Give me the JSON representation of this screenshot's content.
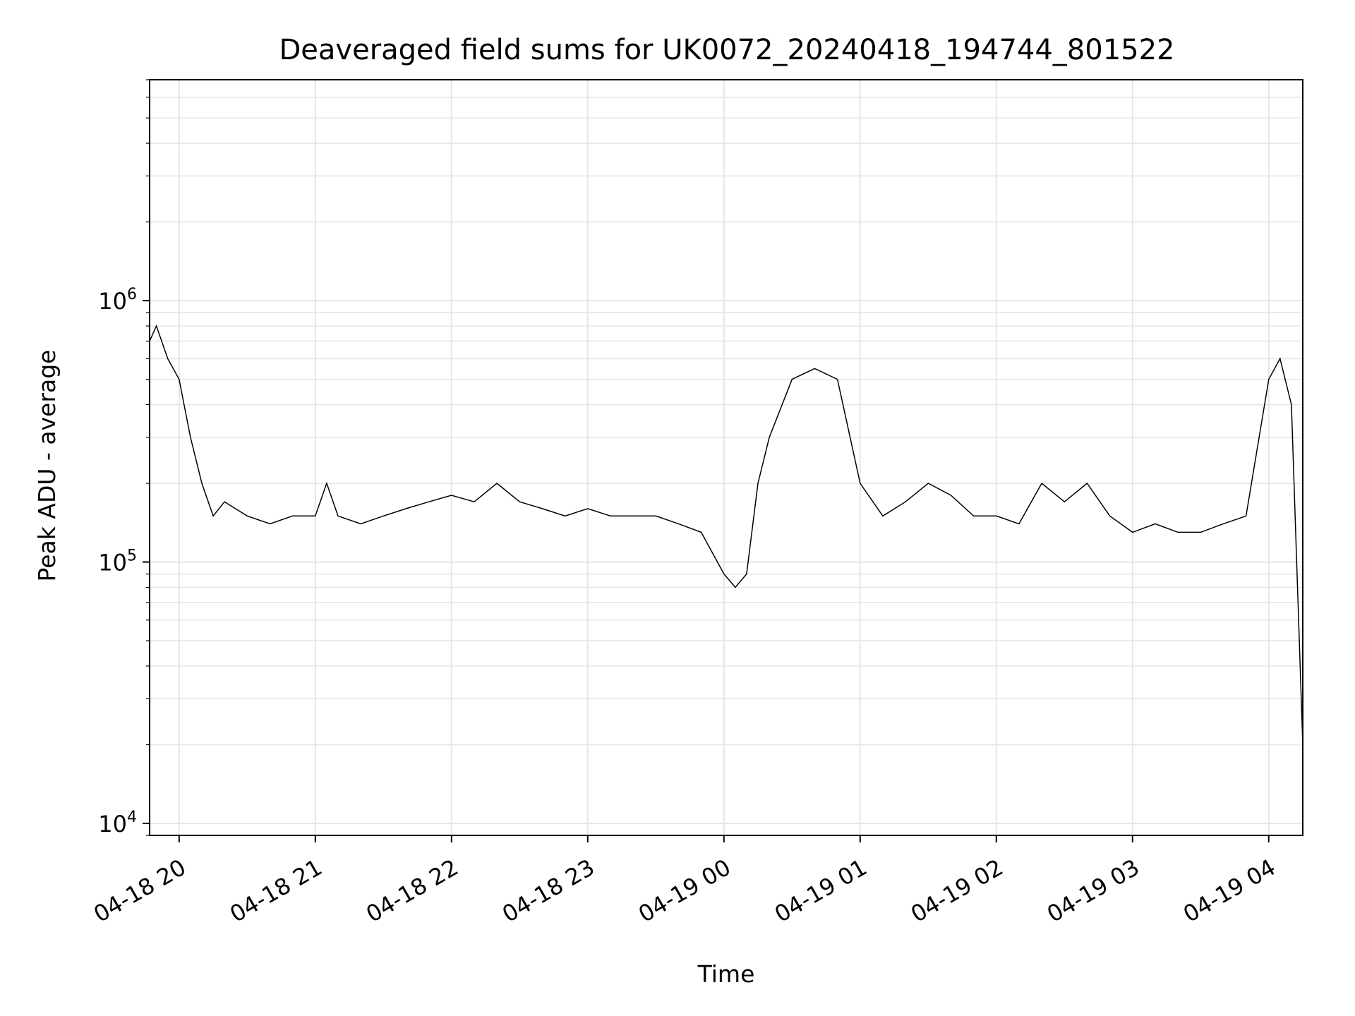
{
  "chart_data": {
    "type": "line",
    "title": "Deaveraged field sums for UK0072_20240418_194744_801522",
    "xlabel": "Time",
    "ylabel": "Peak ADU - average",
    "yscale": "log",
    "xlim": [
      "2024-04-18 19:47",
      "2024-04-19 04:15"
    ],
    "ylim": [
      9000,
      7000000
    ],
    "xticks": [
      {
        "value": "2024-04-18 20:00",
        "label": "04-18 20"
      },
      {
        "value": "2024-04-18 21:00",
        "label": "04-18 21"
      },
      {
        "value": "2024-04-18 22:00",
        "label": "04-18 22"
      },
      {
        "value": "2024-04-18 23:00",
        "label": "04-18 23"
      },
      {
        "value": "2024-04-19 00:00",
        "label": "04-19 00"
      },
      {
        "value": "2024-04-19 01:00",
        "label": "04-19 01"
      },
      {
        "value": "2024-04-19 02:00",
        "label": "04-19 02"
      },
      {
        "value": "2024-04-19 03:00",
        "label": "04-19 03"
      },
      {
        "value": "2024-04-19 04:00",
        "label": "04-19 04"
      }
    ],
    "yticks": [
      {
        "value": 10000,
        "base": "10",
        "exp": "4"
      },
      {
        "value": 100000,
        "base": "10",
        "exp": "5"
      },
      {
        "value": 1000000,
        "base": "10",
        "exp": "6"
      }
    ],
    "grid": true,
    "series_color": "#000000",
    "series": [
      {
        "x": [
          "2024-04-18 19:47",
          "2024-04-18 19:50",
          "2024-04-18 19:55",
          "2024-04-18 20:00",
          "2024-04-18 20:05",
          "2024-04-18 20:10",
          "2024-04-18 20:15",
          "2024-04-18 20:20",
          "2024-04-18 20:30",
          "2024-04-18 20:40",
          "2024-04-18 20:50",
          "2024-04-18 21:00",
          "2024-04-18 21:05",
          "2024-04-18 21:10",
          "2024-04-18 21:20",
          "2024-04-18 21:30",
          "2024-04-18 21:40",
          "2024-04-18 21:50",
          "2024-04-18 22:00",
          "2024-04-18 22:10",
          "2024-04-18 22:20",
          "2024-04-18 22:30",
          "2024-04-18 22:40",
          "2024-04-18 22:50",
          "2024-04-18 23:00",
          "2024-04-18 23:10",
          "2024-04-18 23:20",
          "2024-04-18 23:30",
          "2024-04-18 23:40",
          "2024-04-18 23:50",
          "2024-04-19 00:00",
          "2024-04-19 00:05",
          "2024-04-19 00:10",
          "2024-04-19 00:15",
          "2024-04-19 00:20",
          "2024-04-19 00:30",
          "2024-04-19 00:40",
          "2024-04-19 00:50",
          "2024-04-19 01:00",
          "2024-04-19 01:10",
          "2024-04-19 01:20",
          "2024-04-19 01:30",
          "2024-04-19 01:40",
          "2024-04-19 01:50",
          "2024-04-19 02:00",
          "2024-04-19 02:10",
          "2024-04-19 02:20",
          "2024-04-19 02:30",
          "2024-04-19 02:40",
          "2024-04-19 02:50",
          "2024-04-19 03:00",
          "2024-04-19 03:10",
          "2024-04-19 03:20",
          "2024-04-19 03:30",
          "2024-04-19 03:40",
          "2024-04-19 03:50",
          "2024-04-19 04:00",
          "2024-04-19 04:05",
          "2024-04-19 04:10",
          "2024-04-19 04:15"
        ],
        "y": [
          700000,
          800000,
          600000,
          500000,
          300000,
          200000,
          150000,
          170000,
          150000,
          140000,
          150000,
          150000,
          200000,
          150000,
          140000,
          150000,
          160000,
          170000,
          180000,
          170000,
          200000,
          170000,
          160000,
          150000,
          160000,
          150000,
          150000,
          150000,
          140000,
          130000,
          90000,
          80000,
          90000,
          200000,
          300000,
          500000,
          550000,
          500000,
          200000,
          150000,
          170000,
          200000,
          180000,
          150000,
          150000,
          140000,
          200000,
          170000,
          200000,
          150000,
          130000,
          140000,
          130000,
          130000,
          140000,
          150000,
          500000,
          600000,
          400000,
          20000
        ]
      }
    ]
  }
}
